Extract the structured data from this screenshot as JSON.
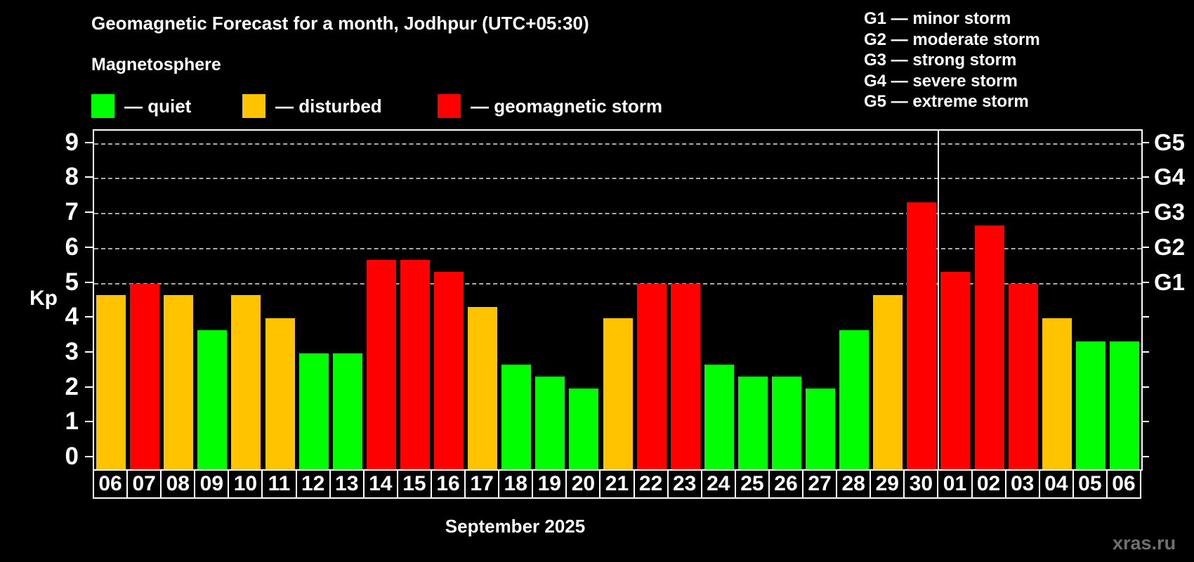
{
  "title": "Geomagnetic Forecast for a month, Jodhpur (UTC+05:30)",
  "subtitle": "Magnetosphere",
  "legend": {
    "quiet_label": "— quiet",
    "disturbed_label": "— disturbed",
    "storm_label": "— geomagnetic storm"
  },
  "gscale_legend": {
    "g1": "G1 — minor storm",
    "g2": "G2 — moderate storm",
    "g3": "G3 — strong storm",
    "g4": "G4 — severe storm",
    "g5": "G5 — extreme storm"
  },
  "ylabel": "Kp",
  "month_label": "September 2025",
  "watermark": "xras.ru",
  "colors": {
    "quiet": "#00ff00",
    "disturbed": "#ffc300",
    "storm": "#ff0000",
    "grid": "#aaaaaa",
    "axis": "#ffffff",
    "background": "#000000",
    "watermark": "#6f6f6f"
  },
  "chart_data": {
    "type": "bar",
    "title": "Geomagnetic Forecast for a month, Jodhpur (UTC+05:30)",
    "xlabel": "September 2025",
    "ylabel": "Kp",
    "ylim": [
      -0.36,
      9.38
    ],
    "grid": "dashed horizontal at Kp 5..9",
    "legend_position": "top-left",
    "categories": [
      "06",
      "07",
      "08",
      "09",
      "10",
      "11",
      "12",
      "13",
      "14",
      "15",
      "16",
      "17",
      "18",
      "19",
      "20",
      "21",
      "22",
      "23",
      "24",
      "25",
      "26",
      "27",
      "28",
      "29",
      "30",
      "01",
      "02",
      "03",
      "04",
      "05",
      "06"
    ],
    "values": [
      4.67,
      5,
      4.67,
      3.67,
      4.67,
      4,
      3,
      3,
      5.67,
      5.67,
      5.33,
      4.33,
      2.67,
      2.33,
      2,
      4,
      5,
      5,
      2.67,
      2.33,
      2.33,
      2,
      3.67,
      4.67,
      7.33,
      5.33,
      6.67,
      5,
      4,
      3.33,
      3.33
    ],
    "states": [
      "disturbed",
      "storm",
      "disturbed",
      "quiet",
      "disturbed",
      "disturbed",
      "quiet",
      "quiet",
      "storm",
      "storm",
      "storm",
      "disturbed",
      "quiet",
      "quiet",
      "quiet",
      "disturbed",
      "storm",
      "storm",
      "quiet",
      "quiet",
      "quiet",
      "quiet",
      "quiet",
      "disturbed",
      "storm",
      "storm",
      "storm",
      "storm",
      "disturbed",
      "quiet",
      "quiet"
    ],
    "yticks": [
      0,
      1,
      2,
      3,
      4,
      5,
      6,
      7,
      8,
      9
    ],
    "gridlines_kp": [
      5,
      6,
      7,
      8,
      9
    ],
    "right_axis_labels": [
      {
        "kp": 5,
        "label": "G1"
      },
      {
        "kp": 6,
        "label": "G2"
      },
      {
        "kp": 7,
        "label": "G3"
      },
      {
        "kp": 8,
        "label": "G4"
      },
      {
        "kp": 9,
        "label": "G5"
      }
    ],
    "month_divider_after_category_index": 24
  }
}
